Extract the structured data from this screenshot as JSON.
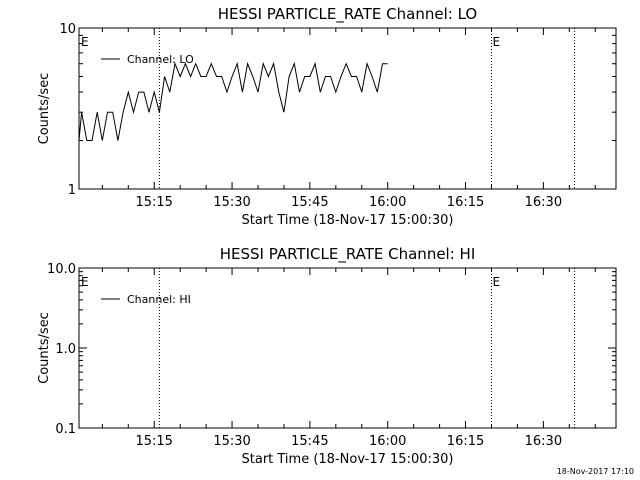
{
  "footer": {
    "timestamp": "18-Nov-2017 17:10"
  },
  "chart_data": [
    {
      "type": "line",
      "title": "HESSI PARTICLE_RATE Channel: LO",
      "xlabel": "Start Time (18-Nov-17 15:00:30)",
      "ylabel": "Counts/sec",
      "yscale": "log",
      "ylim": [
        1,
        10
      ],
      "xlim": [
        "15:00:30",
        "16:44"
      ],
      "yticks": [
        "1",
        "10"
      ],
      "xticks": [
        "15:15",
        "15:30",
        "15:45",
        "16:00",
        "16:15",
        "16:30"
      ],
      "legend_placement": "top-left",
      "event_lines": [
        {
          "time": "15:16",
          "label": ""
        },
        {
          "time": "16:20",
          "label": "E"
        },
        {
          "time": "16:36",
          "label": ""
        }
      ],
      "start_marker": "E",
      "series": [
        {
          "name": "Channel: LO",
          "points": [
            [
              "15:00:30",
              2
            ],
            [
              "15:01",
              3
            ],
            [
              "15:02",
              2
            ],
            [
              "15:03",
              2
            ],
            [
              "15:04",
              3
            ],
            [
              "15:05",
              2
            ],
            [
              "15:06",
              3
            ],
            [
              "15:07",
              3
            ],
            [
              "15:08",
              2
            ],
            [
              "15:09",
              3
            ],
            [
              "15:10",
              4
            ],
            [
              "15:11",
              3
            ],
            [
              "15:12",
              4
            ],
            [
              "15:13",
              4
            ],
            [
              "15:14",
              3
            ],
            [
              "15:15",
              4
            ],
            [
              "15:16",
              3
            ],
            [
              "15:17",
              5
            ],
            [
              "15:18",
              4
            ],
            [
              "15:19",
              6
            ],
            [
              "15:20",
              5
            ],
            [
              "15:21",
              6
            ],
            [
              "15:22",
              5
            ],
            [
              "15:23",
              6
            ],
            [
              "15:24",
              5
            ],
            [
              "15:25",
              5
            ],
            [
              "15:26",
              6
            ],
            [
              "15:27",
              5
            ],
            [
              "15:28",
              5
            ],
            [
              "15:29",
              4
            ],
            [
              "15:30",
              5
            ],
            [
              "15:31",
              6
            ],
            [
              "15:32",
              4
            ],
            [
              "15:33",
              6
            ],
            [
              "15:34",
              5
            ],
            [
              "15:35",
              4
            ],
            [
              "15:36",
              6
            ],
            [
              "15:37",
              5
            ],
            [
              "15:38",
              6
            ],
            [
              "15:39",
              4
            ],
            [
              "15:40",
              3
            ],
            [
              "15:41",
              5
            ],
            [
              "15:42",
              6
            ],
            [
              "15:43",
              4
            ],
            [
              "15:44",
              5
            ],
            [
              "15:45",
              5
            ],
            [
              "15:46",
              6
            ],
            [
              "15:47",
              4
            ],
            [
              "15:48",
              5
            ],
            [
              "15:49",
              5
            ],
            [
              "15:50",
              4
            ],
            [
              "15:51",
              5
            ],
            [
              "15:52",
              6
            ],
            [
              "15:53",
              5
            ],
            [
              "15:54",
              5
            ],
            [
              "15:55",
              4
            ],
            [
              "15:56",
              6
            ],
            [
              "15:57",
              5
            ],
            [
              "15:58",
              4
            ],
            [
              "15:59",
              6
            ],
            [
              "16:00",
              6
            ]
          ]
        }
      ]
    },
    {
      "type": "line",
      "title": "HESSI PARTICLE_RATE Channel: HI",
      "xlabel": "Start Time (18-Nov-17 15:00:30)",
      "ylabel": "Counts/sec",
      "yscale": "log",
      "ylim": [
        0.1,
        10
      ],
      "xlim": [
        "15:00:30",
        "16:44"
      ],
      "yticks": [
        "0.1",
        "1.0",
        "10.0"
      ],
      "xticks": [
        "15:15",
        "15:30",
        "15:45",
        "16:00",
        "16:15",
        "16:30"
      ],
      "legend_placement": "top-left",
      "event_lines": [
        {
          "time": "15:16",
          "label": ""
        },
        {
          "time": "16:20",
          "label": "E"
        },
        {
          "time": "16:36",
          "label": ""
        }
      ],
      "start_marker": "E",
      "series": [
        {
          "name": "Channel: HI",
          "points": []
        }
      ]
    }
  ]
}
